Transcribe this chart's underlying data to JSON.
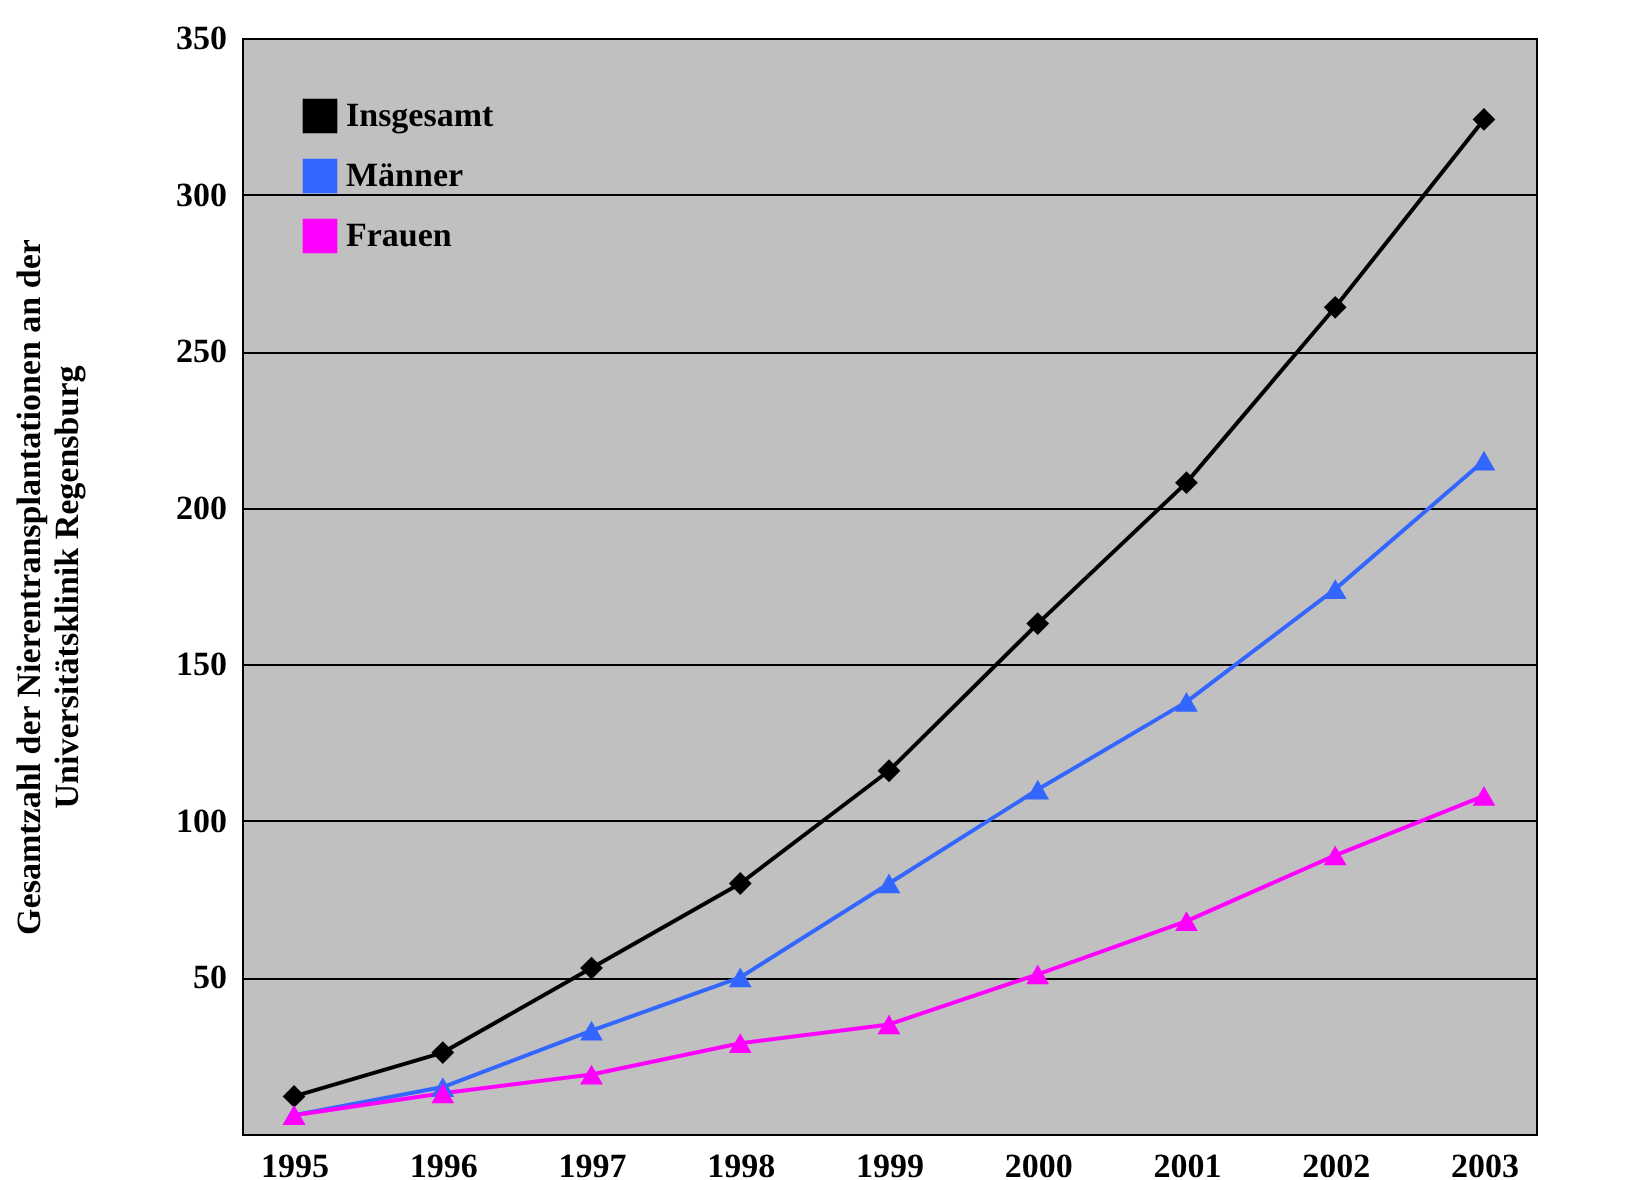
{
  "chart_data": {
    "type": "line",
    "ylabel": "Gesamtzahl der Nierentransplantationen an der\nUniversitätsklinik Regensburg",
    "categories": [
      "1995",
      "1996",
      "1997",
      "1998",
      "1999",
      "2000",
      "2001",
      "2002",
      "2003"
    ],
    "series": [
      {
        "name": "Insgesamt",
        "color": "#000000",
        "marker": "diamond",
        "values": [
          12,
          26,
          53,
          80,
          116,
          163,
          208,
          264,
          324
        ]
      },
      {
        "name": "Männer",
        "color": "#3366ff",
        "marker": "triangle",
        "values": [
          6,
          15,
          33,
          50,
          80,
          110,
          138,
          174,
          215
        ]
      },
      {
        "name": "Frauen",
        "color": "#ff00ff",
        "marker": "triangle",
        "values": [
          6,
          13,
          19,
          29,
          35,
          51,
          68,
          89,
          108
        ]
      }
    ],
    "ylim": [
      0,
      350
    ],
    "yticks": [
      50,
      100,
      150,
      200,
      250,
      300,
      350
    ],
    "grid": "y",
    "legend": "top left",
    "line_style": "solid"
  }
}
